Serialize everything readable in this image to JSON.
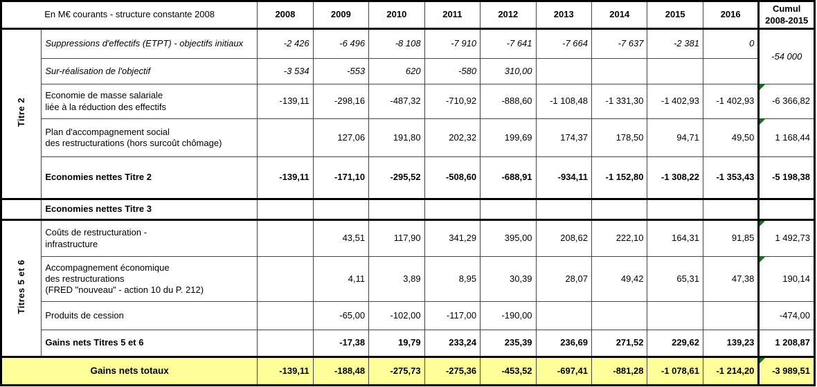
{
  "colors": {
    "highlight": "#FFFF99",
    "comment_marker": "#008000",
    "border_thin": "#444444",
    "border_thick": "#000000"
  },
  "chart_data": {
    "type": "table",
    "title": "En M€ courants - structure constante 2008",
    "columns": [
      "2008",
      "2009",
      "2010",
      "2011",
      "2012",
      "2013",
      "2014",
      "2015",
      "2016"
    ],
    "cumul_header": "Cumul\n2008-2015",
    "row_groups": [
      "Titre 2",
      "Titres 5 et 6"
    ],
    "rows": [
      {
        "group": {
          "text": "Titre 2",
          "span": 5
        },
        "label": "Suppressions d'effectifs (ETPT) - objectifs initiaux",
        "emphasis": "italic",
        "values": [
          "-2 426",
          "-6 496",
          "-8 108",
          "-7 910",
          "-7 641",
          "-7 664",
          "-7 637",
          "-2 381",
          "0"
        ],
        "cumul": {
          "text": "-54 000",
          "span": 2,
          "emphasis": "italic",
          "align": "center",
          "marker": false
        }
      },
      {
        "label": "Sur-réalisation de l'objectif",
        "emphasis": "italic",
        "values": [
          "-3 534",
          "-553",
          "620",
          "-580",
          "310,00",
          "",
          "",
          "",
          ""
        ],
        "cumul": null
      },
      {
        "label": "Economie de masse salariale\nliée à la réduction des effectifs",
        "emphasis": "normal",
        "values": [
          "-139,11",
          "-298,16",
          "-487,32",
          "-710,92",
          "-888,60",
          "-1 108,48",
          "-1 331,30",
          "-1 402,93",
          "-1 402,93"
        ],
        "cumul": {
          "text": "-6 366,82",
          "marker": true
        }
      },
      {
        "label": "Plan d'accompagnement social\ndes restructurations (hors surcoût chômage)",
        "emphasis": "normal",
        "values": [
          "",
          "127,06",
          "191,80",
          "202,32",
          "199,69",
          "174,37",
          "178,50",
          "94,71",
          "49,50"
        ],
        "cumul": {
          "text": "1 168,44",
          "marker": true
        }
      },
      {
        "label": "Economies nettes Titre 2",
        "emphasis": "bold",
        "values": [
          "-139,11",
          "-171,10",
          "-295,52",
          "-508,60",
          "-688,91",
          "-934,11",
          "-1 152,80",
          "-1 308,22",
          "-1 353,43"
        ],
        "cumul": {
          "text": "-5 198,38",
          "marker": false
        }
      },
      {
        "group": {
          "text": "",
          "span": 1
        },
        "label": "Economies nettes Titre 3",
        "emphasis": "bold",
        "values": [
          "",
          "",
          "",
          "",
          "",
          "",
          "",
          "",
          ""
        ],
        "cumul": {
          "text": "",
          "marker": false
        }
      },
      {
        "group": {
          "text": "Titres 5 et 6",
          "span": 4
        },
        "label": "Coûts de restructuration -\n infrastructure",
        "emphasis": "normal",
        "values": [
          "",
          "43,51",
          "117,90",
          "341,29",
          "395,00",
          "208,62",
          "222,10",
          "164,31",
          "91,85"
        ],
        "cumul": {
          "text": "1 492,73",
          "marker": true
        }
      },
      {
        "label": "Accompagnement économique\ndes restructurations\n(FRED \"nouveau\" - action 10 du P. 212)",
        "emphasis": "normal",
        "values": [
          "",
          "4,11",
          "3,89",
          "8,95",
          "30,39",
          "28,07",
          "49,42",
          "65,31",
          "47,38"
        ],
        "cumul": {
          "text": "190,14",
          "marker": true
        }
      },
      {
        "label": "Produits de cession",
        "emphasis": "normal",
        "values": [
          "",
          "-65,00",
          "-102,00",
          "-117,00",
          "-190,00",
          "",
          "",
          "",
          ""
        ],
        "cumul": {
          "text": "-474,00",
          "marker": false
        }
      },
      {
        "label": "Gains nets Titres 5 et 6",
        "emphasis": "bold",
        "values": [
          "",
          "-17,38",
          "19,79",
          "233,24",
          "235,39",
          "236,69",
          "271,52",
          "229,62",
          "139,23"
        ],
        "cumul": {
          "text": "1 208,87",
          "marker": false
        }
      },
      {
        "type": "total",
        "label": "Gains nets totaux",
        "emphasis": "bold",
        "values": [
          "-139,11",
          "-188,48",
          "-275,73",
          "-275,36",
          "-453,52",
          "-697,41",
          "-881,28",
          "-1 078,61",
          "-1 214,20"
        ],
        "cumul": {
          "text": "-3 989,51",
          "marker": true
        }
      }
    ]
  }
}
